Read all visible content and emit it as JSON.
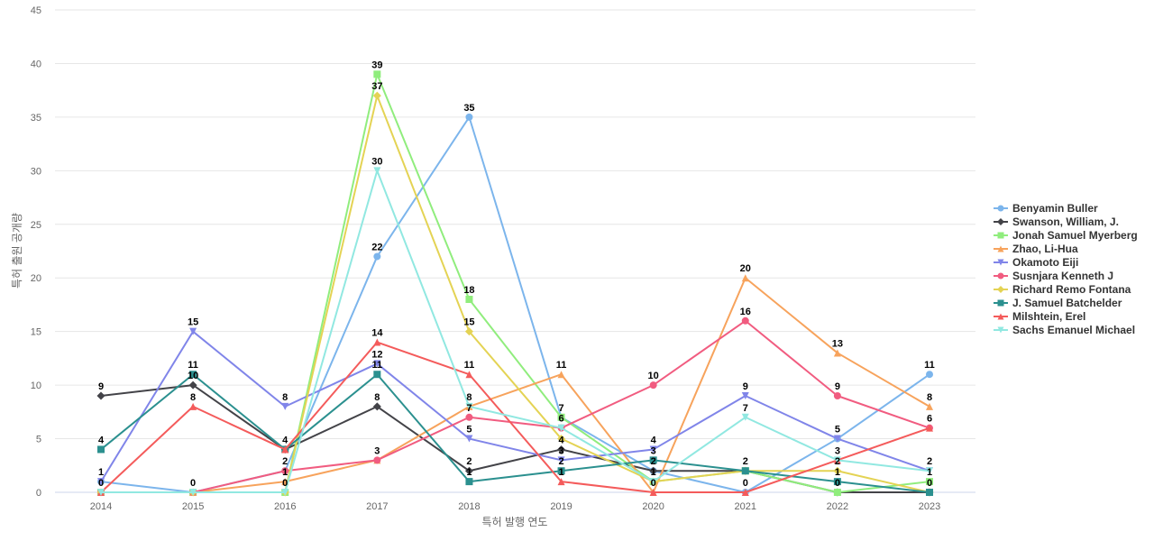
{
  "chart_data": {
    "type": "line",
    "xlabel": "특허 발행 연도",
    "ylabel": "특허 출원 공개량",
    "x": [
      "2014",
      "2015",
      "2016",
      "2017",
      "2018",
      "2019",
      "2020",
      "2021",
      "2022",
      "2023"
    ],
    "ylim": [
      0,
      45
    ],
    "yticks": [
      0,
      5,
      10,
      15,
      20,
      25,
      30,
      35,
      40,
      45
    ],
    "grid": true,
    "legend_position": "right",
    "series": [
      {
        "name": "Benyamin Buller",
        "color": "#7cb5ec",
        "marker": "circle",
        "values": [
          1,
          0,
          2,
          22,
          35,
          7,
          2,
          0,
          5,
          11
        ]
      },
      {
        "name": "Swanson, William, J.",
        "color": "#434348",
        "marker": "diamond",
        "values": [
          9,
          10,
          4,
          8,
          2,
          4,
          2,
          2,
          0,
          0
        ]
      },
      {
        "name": "Jonah Samuel Myerberg",
        "color": "#90ed7d",
        "marker": "square",
        "values": [
          0,
          0,
          0,
          39,
          18,
          7,
          1,
          2,
          0,
          1
        ]
      },
      {
        "name": "Zhao, Li-Hua",
        "color": "#f7a35c",
        "marker": "triangle",
        "values": [
          0,
          0,
          1,
          3,
          8,
          11,
          0,
          20,
          13,
          8
        ]
      },
      {
        "name": "Okamoto Eiji",
        "color": "#8085e9",
        "marker": "triangle-down",
        "values": [
          1,
          15,
          8,
          12,
          5,
          3,
          4,
          9,
          5,
          2
        ]
      },
      {
        "name": "Susnjara Kenneth J",
        "color": "#f15c80",
        "marker": "circle",
        "values": [
          0,
          0,
          2,
          3,
          7,
          6,
          10,
          16,
          9,
          6
        ]
      },
      {
        "name": "Richard Remo Fontana",
        "color": "#e4d354",
        "marker": "diamond",
        "values": [
          0,
          0,
          0,
          37,
          15,
          5,
          1,
          2,
          2,
          0
        ]
      },
      {
        "name": "J. Samuel Batchelder",
        "color": "#2b908f",
        "marker": "square",
        "values": [
          4,
          11,
          4,
          11,
          1,
          2,
          3,
          2,
          1,
          0
        ]
      },
      {
        "name": "Milshtein, Erel",
        "color": "#f45b5b",
        "marker": "triangle",
        "values": [
          0,
          8,
          4,
          14,
          11,
          1,
          0,
          0,
          3,
          6
        ]
      },
      {
        "name": "Sachs Emanuel Michael",
        "color": "#91e8e1",
        "marker": "triangle-down",
        "values": [
          0,
          0,
          0,
          30,
          8,
          6,
          1,
          7,
          3,
          2
        ]
      }
    ],
    "data_labels": [
      {
        "x": "2014",
        "y": 9,
        "text": "9"
      },
      {
        "x": "2014",
        "y": 4,
        "text": "4"
      },
      {
        "x": "2014",
        "y": 1,
        "text": "1"
      },
      {
        "x": "2014",
        "y": 0,
        "text": "0"
      },
      {
        "x": "2015",
        "y": 15,
        "text": "15"
      },
      {
        "x": "2015",
        "y": 11,
        "text": "11"
      },
      {
        "x": "2015",
        "y": 10,
        "text": "10"
      },
      {
        "x": "2015",
        "y": 8,
        "text": "8"
      },
      {
        "x": "2015",
        "y": 0,
        "text": "0"
      },
      {
        "x": "2016",
        "y": 8,
        "text": "8"
      },
      {
        "x": "2016",
        "y": 4,
        "text": "4"
      },
      {
        "x": "2016",
        "y": 2,
        "text": "2"
      },
      {
        "x": "2016",
        "y": 1,
        "text": "1"
      },
      {
        "x": "2016",
        "y": 0,
        "text": "0"
      },
      {
        "x": "2017",
        "y": 39,
        "text": "39"
      },
      {
        "x": "2017",
        "y": 37,
        "text": "37"
      },
      {
        "x": "2017",
        "y": 30,
        "text": "30"
      },
      {
        "x": "2017",
        "y": 22,
        "text": "22"
      },
      {
        "x": "2017",
        "y": 14,
        "text": "14"
      },
      {
        "x": "2017",
        "y": 12,
        "text": "12"
      },
      {
        "x": "2017",
        "y": 11,
        "text": "11"
      },
      {
        "x": "2017",
        "y": 8,
        "text": "8"
      },
      {
        "x": "2017",
        "y": 3,
        "text": "3"
      },
      {
        "x": "2018",
        "y": 35,
        "text": "35"
      },
      {
        "x": "2018",
        "y": 18,
        "text": "18"
      },
      {
        "x": "2018",
        "y": 15,
        "text": "15"
      },
      {
        "x": "2018",
        "y": 11,
        "text": "11"
      },
      {
        "x": "2018",
        "y": 8,
        "text": "8"
      },
      {
        "x": "2018",
        "y": 7,
        "text": "7"
      },
      {
        "x": "2018",
        "y": 5,
        "text": "5"
      },
      {
        "x": "2018",
        "y": 2,
        "text": "2"
      },
      {
        "x": "2018",
        "y": 1,
        "text": "1"
      },
      {
        "x": "2019",
        "y": 11,
        "text": "11"
      },
      {
        "x": "2019",
        "y": 7,
        "text": "7"
      },
      {
        "x": "2019",
        "y": 6,
        "text": "6"
      },
      {
        "x": "2019",
        "y": 4,
        "text": "4"
      },
      {
        "x": "2019",
        "y": 3,
        "text": "3"
      },
      {
        "x": "2019",
        "y": 2,
        "text": "2"
      },
      {
        "x": "2019",
        "y": 1,
        "text": "1"
      },
      {
        "x": "2020",
        "y": 10,
        "text": "10"
      },
      {
        "x": "2020",
        "y": 4,
        "text": "4"
      },
      {
        "x": "2020",
        "y": 3,
        "text": "3"
      },
      {
        "x": "2020",
        "y": 2,
        "text": "2"
      },
      {
        "x": "2020",
        "y": 1,
        "text": "1"
      },
      {
        "x": "2020",
        "y": 0,
        "text": "0"
      },
      {
        "x": "2021",
        "y": 20,
        "text": "20"
      },
      {
        "x": "2021",
        "y": 16,
        "text": "16"
      },
      {
        "x": "2021",
        "y": 9,
        "text": "9"
      },
      {
        "x": "2021",
        "y": 7,
        "text": "7"
      },
      {
        "x": "2021",
        "y": 2,
        "text": "2"
      },
      {
        "x": "2021",
        "y": 0,
        "text": "0"
      },
      {
        "x": "2022",
        "y": 13,
        "text": "13"
      },
      {
        "x": "2022",
        "y": 9,
        "text": "9"
      },
      {
        "x": "2022",
        "y": 5,
        "text": "5"
      },
      {
        "x": "2022",
        "y": 3,
        "text": "3"
      },
      {
        "x": "2022",
        "y": 2,
        "text": "2"
      },
      {
        "x": "2022",
        "y": 1,
        "text": "1"
      },
      {
        "x": "2022",
        "y": 0,
        "text": "0"
      },
      {
        "x": "2023",
        "y": 11,
        "text": "11"
      },
      {
        "x": "2023",
        "y": 8,
        "text": "8"
      },
      {
        "x": "2023",
        "y": 6,
        "text": "6"
      },
      {
        "x": "2023",
        "y": 2,
        "text": "2"
      },
      {
        "x": "2023",
        "y": 1,
        "text": "1"
      },
      {
        "x": "2023",
        "y": 0,
        "text": "0"
      }
    ]
  }
}
